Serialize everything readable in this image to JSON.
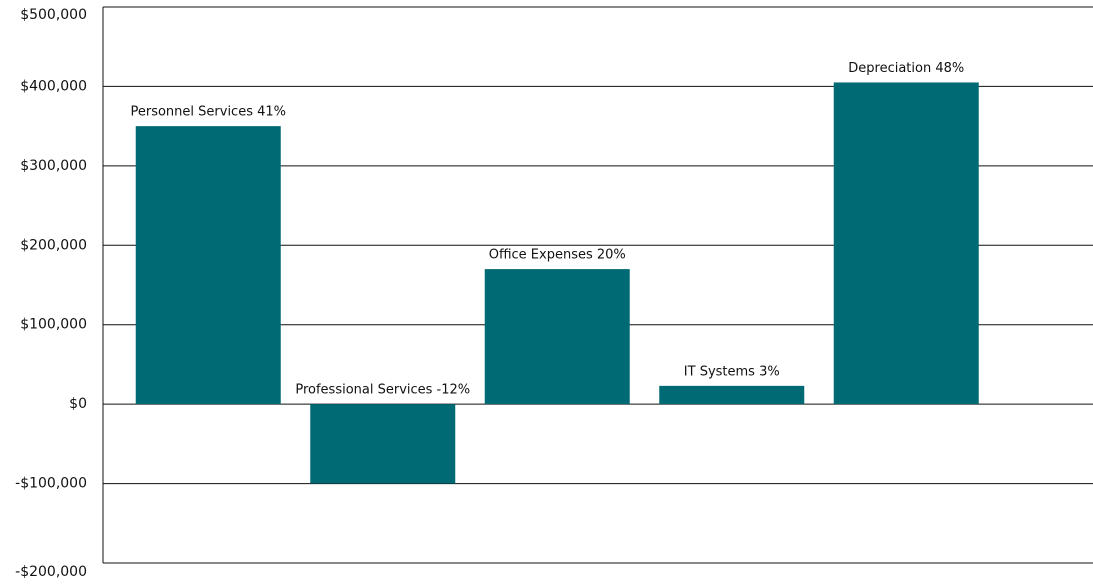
{
  "chart_data": {
    "type": "bar",
    "categories": [
      "Personnel Services 41%",
      "Professional Services -12%",
      "Office Expenses 20%",
      "IT Systems 3%",
      "Depreciation 48%"
    ],
    "values": [
      350000,
      -100000,
      170000,
      23000,
      405000
    ],
    "color": "#006a74",
    "ylim": [
      -200000,
      500000
    ],
    "yticks": [
      {
        "value": -200000,
        "label": "-$200,000"
      },
      {
        "value": -100000,
        "label": "-$100,000"
      },
      {
        "value": 0,
        "label": "$0"
      },
      {
        "value": 100000,
        "label": "$100,000"
      },
      {
        "value": 200000,
        "label": "$200,000"
      },
      {
        "value": 300000,
        "label": "$300,000"
      },
      {
        "value": 400000,
        "label": "$400,000"
      },
      {
        "value": 500000,
        "label": "$500,000"
      }
    ],
    "grid": true
  }
}
